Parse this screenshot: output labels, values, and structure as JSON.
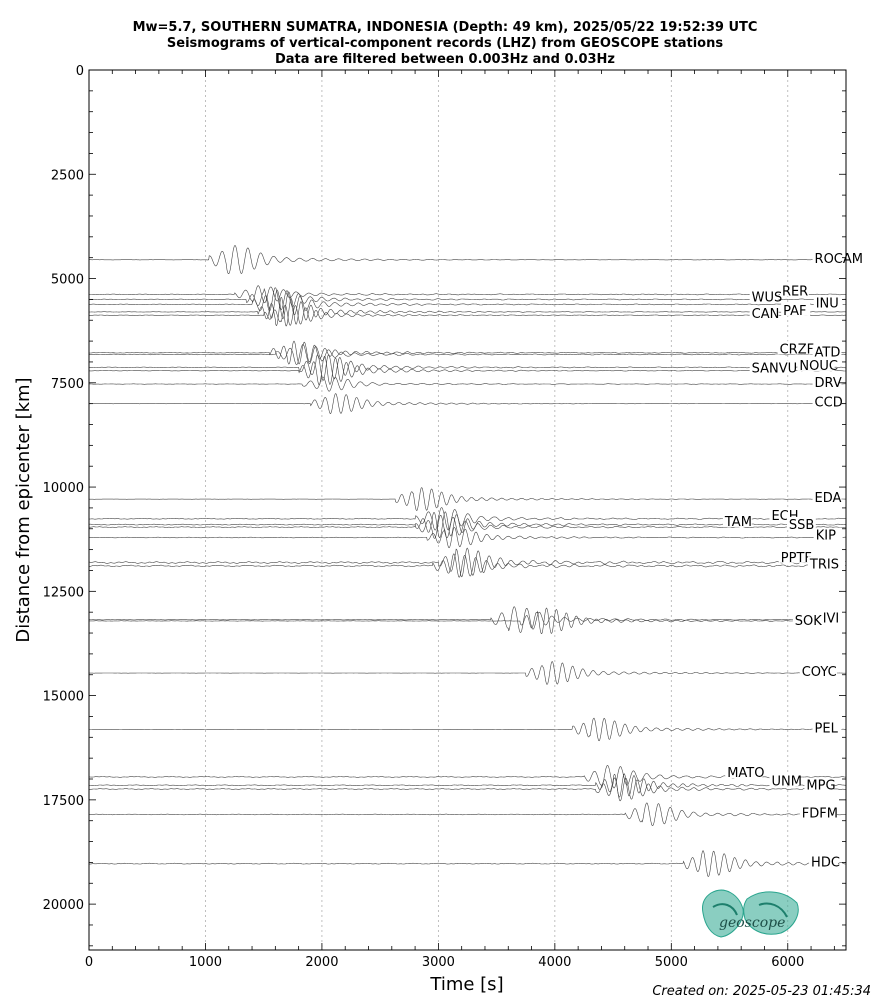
{
  "chart_data": {
    "type": "line",
    "title": [
      "Mw=5.7, SOUTHERN SUMATRA, INDONESIA (Depth: 49 km), 2025/05/22 19:52:39 UTC",
      "Seismograms of vertical-component records (LHZ) from GEOSCOPE stations",
      "Data are filtered between 0.003Hz and 0.03Hz"
    ],
    "xlabel": "Time [s]",
    "ylabel": "Distance from epicenter [km]",
    "xlim": [
      0,
      6500
    ],
    "ylim": [
      21100,
      0
    ],
    "x_ticks": [
      0,
      1000,
      2000,
      3000,
      4000,
      5000,
      6000
    ],
    "y_ticks": [
      0,
      2500,
      5000,
      7500,
      10000,
      12500,
      15000,
      17500,
      20000
    ],
    "x_grid": "dotted vertical lines at major x ticks",
    "stations": [
      {
        "name": "ROCAM",
        "distance": 4550,
        "arrival": 1180,
        "amp": 1.0,
        "noise": 0.05,
        "label_x": 6230,
        "label_distance": 4550
      },
      {
        "name": "RER",
        "distance": 5380,
        "arrival": 1400,
        "amp": 0.6,
        "noise": 0.15,
        "label_x": 5950,
        "label_distance": 5330
      },
      {
        "name": "WUS",
        "distance": 5500,
        "arrival": 1500,
        "amp": 0.8,
        "noise": 0.15,
        "label_x": 5690,
        "label_distance": 5480
      },
      {
        "name": "INU",
        "distance": 5620,
        "arrival": 1550,
        "amp": 1.0,
        "noise": 0.15,
        "label_x": 6240,
        "label_distance": 5620
      },
      {
        "name": "PAF",
        "distance": 5800,
        "arrival": 1600,
        "amp": 1.0,
        "noise": 0.1,
        "label_x": 5960,
        "label_distance": 5800
      },
      {
        "name": "CAN",
        "distance": 5880,
        "arrival": 1650,
        "amp": 0.7,
        "noise": 0.1,
        "label_x": 5690,
        "label_distance": 5870
      },
      {
        "name": "CRZF",
        "distance": 6780,
        "arrival": 1700,
        "amp": 0.8,
        "noise": 0.15,
        "label_x": 5930,
        "label_distance": 6720
      },
      {
        "name": "ATD",
        "distance": 6820,
        "arrival": 1750,
        "amp": 0.7,
        "noise": 0.15,
        "label_x": 6230,
        "label_distance": 6800
      },
      {
        "name": "NOUC",
        "distance": 7130,
        "arrival": 1950,
        "amp": 0.9,
        "noise": 0.15,
        "label_x": 6100,
        "label_distance": 7120
      },
      {
        "name": "SANVU",
        "distance": 7210,
        "arrival": 1950,
        "amp": 1.0,
        "noise": 0.1,
        "label_x": 5690,
        "label_distance": 7180
      },
      {
        "name": "DRV",
        "distance": 7530,
        "arrival": 1980,
        "amp": 0.5,
        "noise": 0.1,
        "label_x": 6230,
        "label_distance": 7530
      },
      {
        "name": "CCD",
        "distance": 8000,
        "arrival": 2050,
        "amp": 0.7,
        "noise": 0.05,
        "label_x": 6230,
        "label_distance": 8000
      },
      {
        "name": "EDA",
        "distance": 10290,
        "arrival": 2780,
        "amp": 0.8,
        "noise": 0.05,
        "label_x": 6230,
        "label_distance": 10290
      },
      {
        "name": "ECH",
        "distance": 10760,
        "arrival": 2950,
        "amp": 0.8,
        "noise": 0.2,
        "label_x": 5860,
        "label_distance": 10720
      },
      {
        "name": "TAM",
        "distance": 10900,
        "arrival": 2950,
        "amp": 0.9,
        "noise": 0.2,
        "label_x": 5460,
        "label_distance": 10860
      },
      {
        "name": "SSB",
        "distance": 10960,
        "arrival": 2950,
        "amp": 0.8,
        "noise": 0.2,
        "label_x": 6010,
        "label_distance": 10930
      },
      {
        "name": "KIP",
        "distance": 11210,
        "arrival": 3050,
        "amp": 0.7,
        "noise": 0.15,
        "label_x": 6240,
        "label_distance": 11190
      },
      {
        "name": "PPTF",
        "distance": 11810,
        "arrival": 3150,
        "amp": 1.0,
        "noise": 0.4,
        "label_x": 5940,
        "label_distance": 11720
      },
      {
        "name": "TRIS",
        "distance": 11890,
        "arrival": 3100,
        "amp": 0.8,
        "noise": 0.35,
        "label_x": 6190,
        "label_distance": 11880
      },
      {
        "name": "IVI",
        "distance": 13180,
        "arrival": 3600,
        "amp": 0.9,
        "noise": 0.1,
        "label_x": 6300,
        "label_distance": 13180
      },
      {
        "name": "SOK",
        "distance": 13210,
        "arrival": 3850,
        "amp": 0.9,
        "noise": 0.1,
        "label_x": 6060,
        "label_distance": 13230
      },
      {
        "name": "COYC",
        "distance": 14460,
        "arrival": 3900,
        "amp": 0.8,
        "noise": 0.05,
        "label_x": 6120,
        "label_distance": 14460
      },
      {
        "name": "PEL",
        "distance": 15810,
        "arrival": 4300,
        "amp": 0.8,
        "noise": 0.05,
        "label_x": 6230,
        "label_distance": 15810
      },
      {
        "name": "MATO",
        "distance": 16950,
        "arrival": 4400,
        "amp": 0.8,
        "noise": 0.2,
        "label_x": 5480,
        "label_distance": 16880
      },
      {
        "name": "UNM",
        "distance": 17150,
        "arrival": 4500,
        "amp": 0.8,
        "noise": 0.2,
        "label_x": 5860,
        "label_distance": 17080
      },
      {
        "name": "MPG",
        "distance": 17240,
        "arrival": 4500,
        "amp": 0.8,
        "noise": 0.2,
        "label_x": 6160,
        "label_distance": 17180
      },
      {
        "name": "FDFM",
        "distance": 17850,
        "arrival": 4750,
        "amp": 0.8,
        "noise": 0.15,
        "label_x": 6120,
        "label_distance": 17850
      },
      {
        "name": "HDC",
        "distance": 19030,
        "arrival": 5250,
        "amp": 0.9,
        "noise": 0.2,
        "label_x": 6200,
        "label_distance": 19030
      }
    ]
  },
  "logo": {
    "text": "geoscope"
  },
  "footer": {
    "created": "Created on: 2025-05-23 01:45:34"
  }
}
